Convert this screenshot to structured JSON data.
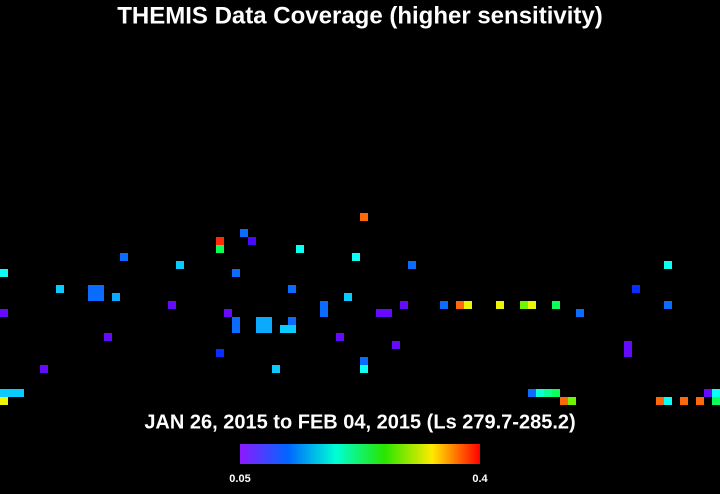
{
  "chart_data": {
    "type": "heatmap",
    "title": "THEMIS Data Coverage (higher sensitivity)",
    "subtitle": "JAN 26, 2015 to FEB 04, 2015 (Ls 279.7-285.2)",
    "x": [
      45,
      27,
      27,
      30,
      31,
      37,
      15,
      44,
      0,
      22,
      29,
      51,
      83,
      7,
      11,
      12,
      11,
      12,
      14,
      36,
      43,
      79,
      0,
      21,
      28,
      29,
      29,
      32,
      33,
      32,
      33,
      35,
      36,
      36,
      40,
      40,
      47,
      48,
      50,
      55,
      57,
      58,
      62,
      65,
      66,
      69,
      72,
      83,
      13,
      42,
      49,
      78,
      78,
      27,
      45,
      45,
      34,
      5,
      0,
      1,
      2,
      66,
      67,
      68,
      69,
      88,
      89,
      0,
      70,
      71,
      82,
      83,
      85,
      87,
      89
    ],
    "y": [
      27,
      30,
      31,
      29,
      30,
      31,
      32,
      32,
      34,
      33,
      34,
      33,
      33,
      36,
      36,
      36,
      37,
      37,
      37,
      36,
      37,
      36,
      39,
      38,
      39,
      40,
      41,
      40,
      40,
      41,
      41,
      41,
      41,
      40,
      38,
      39,
      39,
      39,
      38,
      38,
      38,
      38,
      38,
      38,
      38,
      38,
      39,
      38,
      42,
      42,
      43,
      43,
      44,
      44,
      45,
      46,
      46,
      46,
      49,
      49,
      49,
      49,
      49,
      49,
      49,
      49,
      49,
      50,
      50,
      50,
      50,
      50,
      50,
      50,
      50
    ],
    "values": [
      0.37,
      0.39,
      0.22,
      0.12,
      0.07,
      0.17,
      0.12,
      0.17,
      0.17,
      0.15,
      0.12,
      0.12,
      0.17,
      0.15,
      0.12,
      0.12,
      0.12,
      0.12,
      0.14,
      0.12,
      0.15,
      0.1,
      0.06,
      0.06,
      0.06,
      0.12,
      0.12,
      0.14,
      0.14,
      0.14,
      0.14,
      0.15,
      0.15,
      0.12,
      0.12,
      0.12,
      0.06,
      0.06,
      0.06,
      0.12,
      0.37,
      0.32,
      0.32,
      0.28,
      0.32,
      0.22,
      0.12,
      0.12,
      0.06,
      0.06,
      0.06,
      0.06,
      0.06,
      0.1,
      0.12,
      0.17,
      0.15,
      0.06,
      0.15,
      0.15,
      0.15,
      0.12,
      0.18,
      0.2,
      0.22,
      0.06,
      0.17,
      0.32,
      0.37,
      0.28,
      0.37,
      0.17,
      0.37,
      0.37,
      0.22
    ],
    "colorbar": {
      "lim": [
        0.05,
        0.4
      ],
      "ticks": [
        0.05,
        0.4
      ]
    }
  }
}
